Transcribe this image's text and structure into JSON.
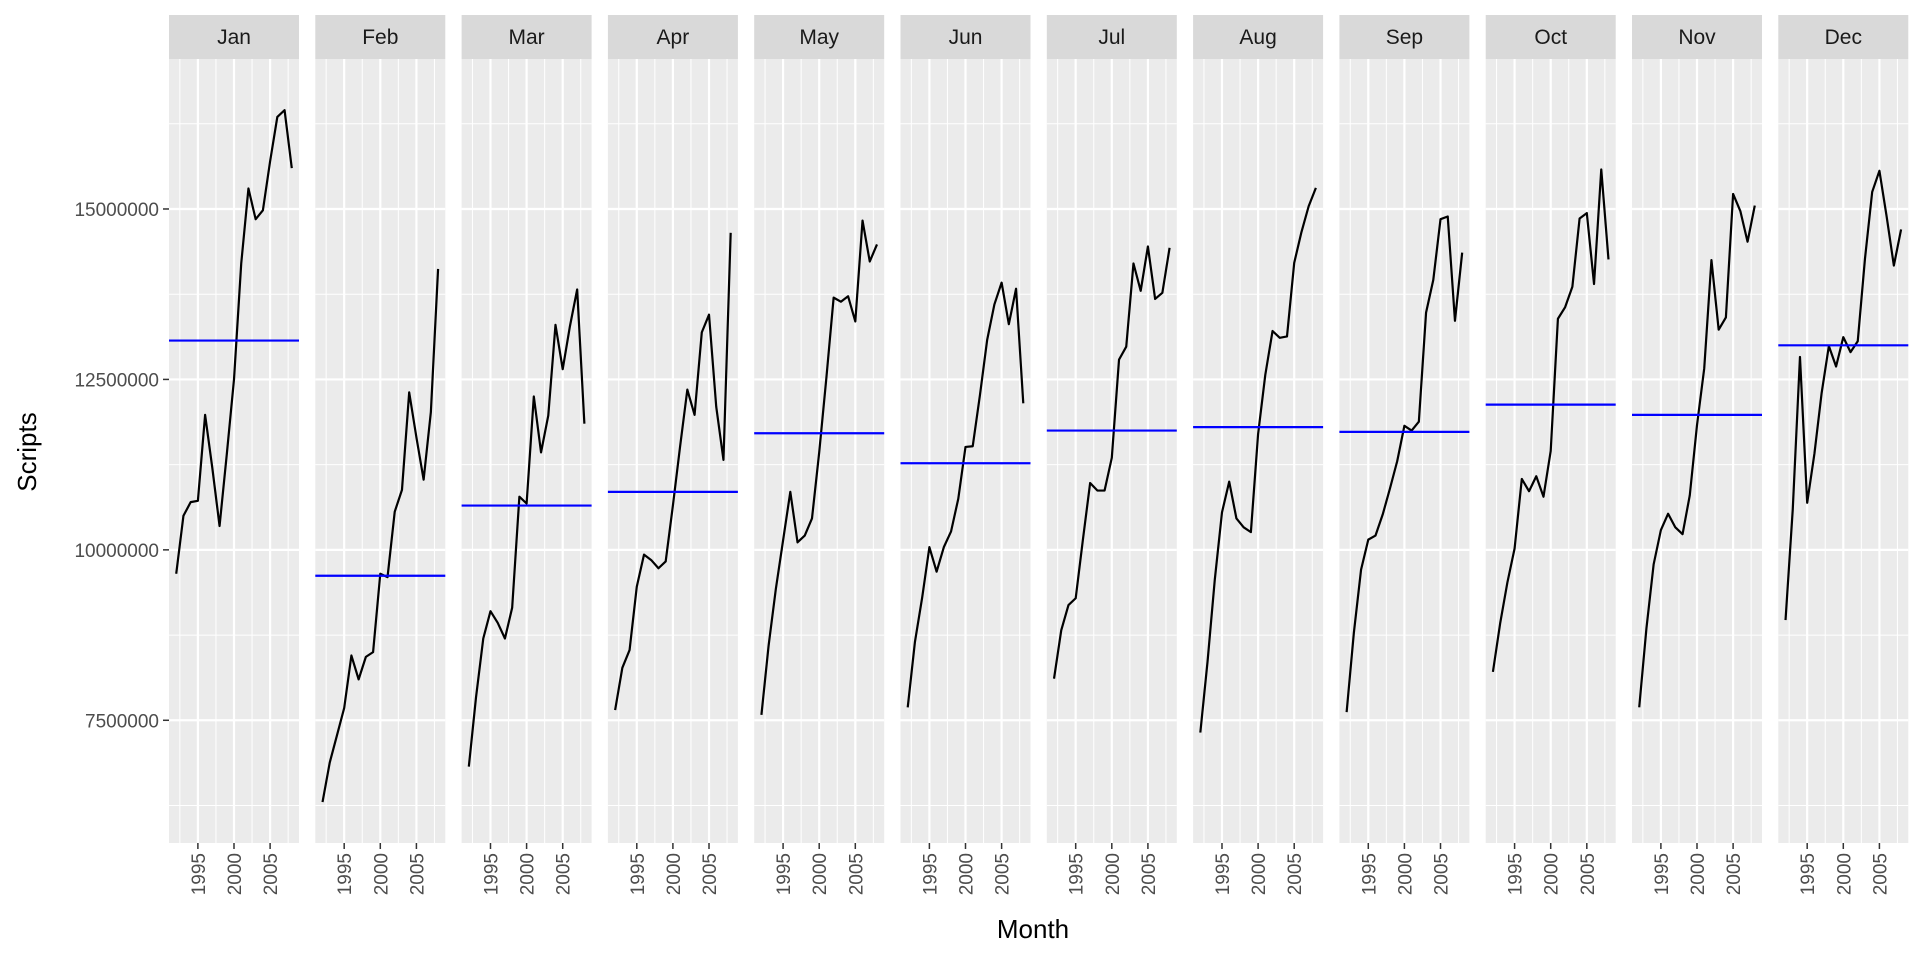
{
  "chart_data": {
    "type": "line",
    "title": "",
    "xlabel": "Month",
    "ylabel": "Scripts",
    "facet_order": [
      "Jan",
      "Feb",
      "Mar",
      "Apr",
      "May",
      "Jun",
      "Jul",
      "Aug",
      "Sep",
      "Oct",
      "Nov",
      "Dec"
    ],
    "x_ticks": [
      1995,
      2000,
      2005
    ],
    "x_range": [
      1991,
      2009
    ],
    "y_ticks": [
      7500000,
      10000000,
      12500000,
      15000000
    ],
    "y_tick_labels": [
      "7500000",
      "10000000",
      "12500000",
      "15000000"
    ],
    "ylim": [
      5700000,
      17200000
    ],
    "grid": true,
    "colors": {
      "series": "#000000",
      "mean_line": "#0000ff",
      "panel_bg": "#ebebeb",
      "strip_bg": "#d9d9d9",
      "grid": "#ffffff"
    },
    "panels": [
      {
        "month": "Jan",
        "start_year": 1992,
        "mean": 13070000,
        "values": [
          9650000,
          10500000,
          10700000,
          10720000,
          11980000,
          11200000,
          10350000,
          11400000,
          12500000,
          14200000,
          15300000,
          14850000,
          14980000,
          15700000,
          16350000,
          16450000,
          15600000
        ]
      },
      {
        "month": "Feb",
        "start_year": 1992,
        "mean": 9620000,
        "values": [
          6300000,
          6880000,
          7280000,
          7680000,
          8450000,
          8100000,
          8430000,
          8500000,
          9650000,
          9600000,
          10560000,
          10880000,
          12310000,
          11650000,
          11030000,
          12020000,
          14120000
        ]
      },
      {
        "month": "Mar",
        "start_year": 1992,
        "mean": 10650000,
        "values": [
          6820000,
          7840000,
          8700000,
          9100000,
          8930000,
          8700000,
          9150000,
          10780000,
          10680000,
          12250000,
          11430000,
          11970000,
          13300000,
          12650000,
          13280000,
          13820000,
          11850000
        ]
      },
      {
        "month": "Apr",
        "start_year": 1992,
        "mean": 10850000,
        "values": [
          7650000,
          8270000,
          8530000,
          9460000,
          9930000,
          9850000,
          9730000,
          9830000,
          10650000,
          11520000,
          12350000,
          11980000,
          13190000,
          13450000,
          12100000,
          11320000,
          14650000
        ]
      },
      {
        "month": "May",
        "start_year": 1992,
        "mean": 11710000,
        "values": [
          7580000,
          8600000,
          9430000,
          10140000,
          10850000,
          10110000,
          10210000,
          10460000,
          11430000,
          12530000,
          13700000,
          13640000,
          13720000,
          13350000,
          14830000,
          14230000,
          14480000
        ]
      },
      {
        "month": "Jun",
        "start_year": 1992,
        "mean": 11270000,
        "values": [
          7690000,
          8650000,
          9300000,
          10040000,
          9680000,
          10040000,
          10270000,
          10750000,
          11510000,
          11520000,
          12270000,
          13080000,
          13600000,
          13920000,
          13310000,
          13830000,
          12150000
        ]
      },
      {
        "month": "Jul",
        "start_year": 1992,
        "mean": 11750000,
        "values": [
          8110000,
          8820000,
          9190000,
          9290000,
          10150000,
          10980000,
          10870000,
          10870000,
          11350000,
          12790000,
          12980000,
          14200000,
          13800000,
          14450000,
          13680000,
          13770000,
          14430000
        ]
      },
      {
        "month": "Aug",
        "start_year": 1992,
        "mean": 11800000,
        "values": [
          7320000,
          8360000,
          9560000,
          10550000,
          11000000,
          10460000,
          10330000,
          10260000,
          11700000,
          12570000,
          13210000,
          13110000,
          13130000,
          14210000,
          14660000,
          15040000,
          15310000
        ]
      },
      {
        "month": "Sep",
        "start_year": 1992,
        "mean": 11730000,
        "values": [
          7620000,
          8780000,
          9710000,
          10150000,
          10210000,
          10520000,
          10900000,
          11300000,
          11820000,
          11750000,
          11880000,
          13480000,
          13960000,
          14850000,
          14890000,
          13360000,
          14360000
        ]
      },
      {
        "month": "Oct",
        "start_year": 1992,
        "mean": 12130000,
        "values": [
          8210000,
          8920000,
          9520000,
          10020000,
          11040000,
          10860000,
          11080000,
          10780000,
          11450000,
          13390000,
          13560000,
          13860000,
          14860000,
          14940000,
          13900000,
          15580000,
          14260000
        ]
      },
      {
        "month": "Nov",
        "start_year": 1992,
        "mean": 11980000,
        "values": [
          7690000,
          8850000,
          9790000,
          10290000,
          10530000,
          10330000,
          10230000,
          10800000,
          11830000,
          12660000,
          14250000,
          13230000,
          13410000,
          15220000,
          14970000,
          14520000,
          15050000
        ]
      },
      {
        "month": "Dec",
        "start_year": 1992,
        "mean": 13000000,
        "values": [
          8970000,
          10590000,
          12830000,
          10690000,
          11410000,
          12300000,
          12990000,
          12690000,
          13120000,
          12900000,
          13060000,
          14270000,
          15250000,
          15560000,
          14890000,
          14170000,
          14700000
        ]
      }
    ]
  }
}
